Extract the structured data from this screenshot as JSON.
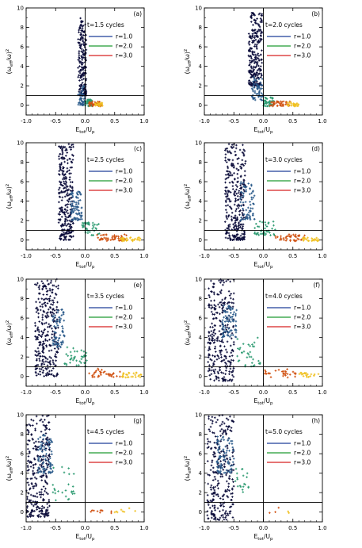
{
  "chart_data": [
    {
      "type": "scatter",
      "panel_label": "(a)",
      "time_label": "t=1.5 cycles",
      "xlabel": "E_tot/U_p",
      "ylabel": "(ω_eff/ω)²",
      "xlim": [
        -1,
        1
      ],
      "ylim": [
        -1,
        10
      ],
      "xticks": [
        "-1.0",
        "-0.5",
        "0.0",
        "0.5",
        "1.0"
      ],
      "yticks": [
        "0",
        "2",
        "4",
        "6",
        "8",
        "10"
      ],
      "hline": 1,
      "vline": 0,
      "legend": [
        {
          "name": "r=1.0",
          "color": "#1f3d99"
        },
        {
          "name": "r=2.0",
          "color": "#1e9a30"
        },
        {
          "name": "r=3.0",
          "color": "#d62020"
        }
      ],
      "clusters": [
        {
          "x_range": [
            -0.12,
            0.02
          ],
          "y_range": [
            1,
            9
          ],
          "count": 200,
          "color": "#0b0c3a"
        },
        {
          "x_range": [
            -0.12,
            0.0
          ],
          "y_range": [
            0,
            2
          ],
          "count": 50,
          "color": "#2a5a8a"
        },
        {
          "x_range": [
            0.0,
            0.12
          ],
          "y_range": [
            -0.1,
            0.6
          ],
          "count": 40,
          "color": "#2b9a70"
        },
        {
          "x_range": [
            0.05,
            0.3
          ],
          "y_range": [
            -0.1,
            0.4
          ],
          "count": 40,
          "color": "#d05010"
        },
        {
          "x_range": [
            0.15,
            0.3
          ],
          "y_range": [
            -0.1,
            0.3
          ],
          "count": 20,
          "color": "#f0c020"
        }
      ]
    },
    {
      "type": "scatter",
      "panel_label": "(b)",
      "time_label": "t=2.0 cycles",
      "xlabel": "E_tot/U_p",
      "ylabel": "(ω_eff/ω)²",
      "xlim": [
        -1,
        1
      ],
      "ylim": [
        -1,
        10
      ],
      "xticks": [
        "-1.0",
        "-0.5",
        "0.0",
        "0.5",
        "1.0"
      ],
      "yticks": [
        "0",
        "2",
        "4",
        "6",
        "8",
        "10"
      ],
      "hline": 1,
      "vline": 0,
      "legend": [
        {
          "name": "r=1.0",
          "color": "#1f3d99"
        },
        {
          "name": "r=2.0",
          "color": "#1e9a30"
        },
        {
          "name": "r=3.0",
          "color": "#d62020"
        }
      ],
      "clusters": [
        {
          "x_range": [
            -0.25,
            -0.02
          ],
          "y_range": [
            2,
            9.5
          ],
          "count": 260,
          "color": "#0b0c3a"
        },
        {
          "x_range": [
            -0.2,
            0.0
          ],
          "y_range": [
            0.5,
            3
          ],
          "count": 60,
          "color": "#2a5a8a"
        },
        {
          "x_range": [
            0.0,
            0.2
          ],
          "y_range": [
            -0.1,
            0.8
          ],
          "count": 40,
          "color": "#2b9a70"
        },
        {
          "x_range": [
            0.1,
            0.45
          ],
          "y_range": [
            -0.1,
            0.4
          ],
          "count": 40,
          "color": "#d05010"
        },
        {
          "x_range": [
            0.4,
            0.6
          ],
          "y_range": [
            -0.1,
            0.3
          ],
          "count": 25,
          "color": "#f0c020"
        }
      ]
    },
    {
      "type": "scatter",
      "panel_label": "(c)",
      "time_label": "t=2.5 cycles",
      "xlabel": "E_tot/U_p",
      "ylabel": "(ω_eff/ω)²",
      "xlim": [
        -1,
        1
      ],
      "ylim": [
        -1,
        10
      ],
      "xticks": [
        "-1.0",
        "-0.5",
        "0.0",
        "0.5",
        "1.0"
      ],
      "yticks": [
        "0",
        "2",
        "4",
        "6",
        "8",
        "10"
      ],
      "hline": 1,
      "vline": 0,
      "legend": [
        {
          "name": "r=1.0",
          "color": "#1f3d99"
        },
        {
          "name": "r=2.0",
          "color": "#1e9a30"
        },
        {
          "name": "r=3.0",
          "color": "#d62020"
        }
      ],
      "clusters": [
        {
          "x_range": [
            -0.45,
            -0.2
          ],
          "y_range": [
            0,
            10
          ],
          "count": 280,
          "color": "#0b0c3a"
        },
        {
          "x_range": [
            -0.25,
            -0.05
          ],
          "y_range": [
            2,
            5
          ],
          "count": 80,
          "color": "#2a5a8a"
        },
        {
          "x_range": [
            -0.05,
            0.25
          ],
          "y_range": [
            0.5,
            2
          ],
          "count": 40,
          "color": "#2b9a70"
        },
        {
          "x_range": [
            0.2,
            0.7
          ],
          "y_range": [
            -0.1,
            0.6
          ],
          "count": 50,
          "color": "#d05010"
        },
        {
          "x_range": [
            0.6,
            0.95
          ],
          "y_range": [
            -0.1,
            0.3
          ],
          "count": 30,
          "color": "#f0c020"
        }
      ]
    },
    {
      "type": "scatter",
      "panel_label": "(d)",
      "time_label": "t=3.0 cycles",
      "xlabel": "E_tot/U_p",
      "ylabel": "(ω_eff/ω)²",
      "xlim": [
        -1,
        1
      ],
      "ylim": [
        -1,
        10
      ],
      "xticks": [
        "-1.0",
        "-0.5",
        "0.0",
        "0.5",
        "1.0"
      ],
      "yticks": [
        "0",
        "2",
        "4",
        "6",
        "8",
        "10"
      ],
      "hline": 1,
      "vline": 0,
      "legend": [
        {
          "name": "r=1.0",
          "color": "#1f3d99"
        },
        {
          "name": "r=2.0",
          "color": "#1e9a30"
        },
        {
          "name": "r=3.0",
          "color": "#d62020"
        }
      ],
      "clusters": [
        {
          "x_range": [
            -0.65,
            -0.3
          ],
          "y_range": [
            0,
            10
          ],
          "count": 300,
          "color": "#0b0c3a"
        },
        {
          "x_range": [
            -0.4,
            -0.15
          ],
          "y_range": [
            2,
            6
          ],
          "count": 70,
          "color": "#2a5a8a"
        },
        {
          "x_range": [
            -0.15,
            0.2
          ],
          "y_range": [
            0.5,
            2
          ],
          "count": 40,
          "color": "#2b9a70"
        },
        {
          "x_range": [
            0.2,
            0.7
          ],
          "y_range": [
            -0.1,
            0.6
          ],
          "count": 40,
          "color": "#d05010"
        },
        {
          "x_range": [
            0.65,
            0.95
          ],
          "y_range": [
            -0.1,
            0.3
          ],
          "count": 25,
          "color": "#f0c020"
        }
      ]
    },
    {
      "type": "scatter",
      "panel_label": "(e)",
      "time_label": "t=3.5 cycles",
      "xlabel": "E_tot/U_p",
      "ylabel": "(ω_eff/ω)²",
      "xlim": [
        -1,
        1
      ],
      "ylim": [
        -1,
        10
      ],
      "xticks": [
        "-1.0",
        "-0.5",
        "0.0",
        "0.5",
        "1.0"
      ],
      "yticks": [
        "0",
        "2",
        "4",
        "6",
        "8",
        "10"
      ],
      "hline": 1,
      "vline": 0,
      "legend": [
        {
          "name": "r=1.0",
          "color": "#1f3d99"
        },
        {
          "name": "r=2.0",
          "color": "#1e9a30"
        },
        {
          "name": "r=3.0",
          "color": "#d62020"
        }
      ],
      "clusters": [
        {
          "x_range": [
            -0.85,
            -0.45
          ],
          "y_range": [
            0,
            10
          ],
          "count": 300,
          "color": "#0b0c3a"
        },
        {
          "x_range": [
            -0.55,
            -0.35
          ],
          "y_range": [
            3,
            7
          ],
          "count": 70,
          "color": "#2a5a8a"
        },
        {
          "x_range": [
            -0.35,
            0.05
          ],
          "y_range": [
            1,
            3
          ],
          "count": 40,
          "color": "#2b9a70"
        },
        {
          "x_range": [
            0.05,
            0.6
          ],
          "y_range": [
            -0.1,
            0.8
          ],
          "count": 35,
          "color": "#d05010"
        },
        {
          "x_range": [
            0.6,
            0.95
          ],
          "y_range": [
            -0.1,
            0.4
          ],
          "count": 25,
          "color": "#f0c020"
        }
      ]
    },
    {
      "type": "scatter",
      "panel_label": "(f)",
      "time_label": "t=4.0 cycles",
      "xlabel": "E_tot/U_p",
      "ylabel": "(ω_eff/ω)²",
      "xlim": [
        -1,
        1
      ],
      "ylim": [
        -1,
        10
      ],
      "xticks": [
        "-1.0",
        "-0.5",
        "0.0",
        "0.5",
        "1.0"
      ],
      "yticks": [
        "0",
        "2",
        "4",
        "6",
        "8",
        "10"
      ],
      "hline": 1,
      "vline": 0,
      "legend": [
        {
          "name": "r=1.0",
          "color": "#1f3d99"
        },
        {
          "name": "r=2.0",
          "color": "#1e9a30"
        },
        {
          "name": "r=3.0",
          "color": "#d62020"
        }
      ],
      "clusters": [
        {
          "x_range": [
            -0.95,
            -0.5
          ],
          "y_range": [
            -0.5,
            10
          ],
          "count": 280,
          "color": "#0b0c3a"
        },
        {
          "x_range": [
            -0.7,
            -0.45
          ],
          "y_range": [
            4,
            7.5
          ],
          "count": 80,
          "color": "#2a5a8a"
        },
        {
          "x_range": [
            -0.45,
            -0.05
          ],
          "y_range": [
            1,
            4
          ],
          "count": 35,
          "color": "#2b9a70"
        },
        {
          "x_range": [
            0.0,
            0.6
          ],
          "y_range": [
            -0.1,
            0.8
          ],
          "count": 30,
          "color": "#d05010"
        },
        {
          "x_range": [
            0.6,
            0.95
          ],
          "y_range": [
            -0.1,
            0.4
          ],
          "count": 20,
          "color": "#f0c020"
        }
      ]
    },
    {
      "type": "scatter",
      "panel_label": "(g)",
      "time_label": "t=4.5 cycles",
      "xlabel": "E_tot/U_p",
      "ylabel": "(ω_eff/ω)²",
      "xlim": [
        -1,
        1
      ],
      "ylim": [
        -1,
        10
      ],
      "xticks": [
        "-1.0",
        "-0.5",
        "0.0",
        "0.5",
        "1.0"
      ],
      "yticks": [
        "0",
        "2",
        "4",
        "6",
        "8",
        "10"
      ],
      "hline": 1,
      "vline": 0,
      "legend": [
        {
          "name": "r=1.0",
          "color": "#1f3d99"
        },
        {
          "name": "r=2.0",
          "color": "#1e9a30"
        },
        {
          "name": "r=3.0",
          "color": "#d62020"
        }
      ],
      "clusters": [
        {
          "x_range": [
            -1.0,
            -0.6
          ],
          "y_range": [
            -0.5,
            10
          ],
          "count": 280,
          "color": "#0b0c3a"
        },
        {
          "x_range": [
            -0.8,
            -0.55
          ],
          "y_range": [
            4,
            8
          ],
          "count": 80,
          "color": "#2a5a8a"
        },
        {
          "x_range": [
            -0.55,
            -0.15
          ],
          "y_range": [
            1,
            5
          ],
          "count": 25,
          "color": "#2b9a70"
        },
        {
          "x_range": [
            0.0,
            0.5
          ],
          "y_range": [
            -0.1,
            0.5
          ],
          "count": 10,
          "color": "#d05010"
        },
        {
          "x_range": [
            0.5,
            0.95
          ],
          "y_range": [
            -0.1,
            0.4
          ],
          "count": 8,
          "color": "#f0c020"
        }
      ]
    },
    {
      "type": "scatter",
      "panel_label": "(h)",
      "time_label": "t=5.0 cycles",
      "xlabel": "E_tot/U_p",
      "ylabel": "(ω_eff/ω)²",
      "xlim": [
        -1,
        1
      ],
      "ylim": [
        -1,
        10
      ],
      "xticks": [
        "-1.0",
        "-0.5",
        "0.0",
        "0.5",
        "1.0"
      ],
      "yticks": [
        "0",
        "2",
        "4",
        "6",
        "8",
        "10"
      ],
      "hline": 1,
      "vline": 0,
      "legend": [
        {
          "name": "r=1.0",
          "color": "#1f3d99"
        },
        {
          "name": "r=2.0",
          "color": "#1e9a30"
        },
        {
          "name": "r=3.0",
          "color": "#d62020"
        }
      ],
      "clusters": [
        {
          "x_range": [
            -0.95,
            -0.5
          ],
          "y_range": [
            -0.8,
            10
          ],
          "count": 260,
          "color": "#0b0c3a"
        },
        {
          "x_range": [
            -0.8,
            -0.5
          ],
          "y_range": [
            4,
            8
          ],
          "count": 80,
          "color": "#2a5a8a"
        },
        {
          "x_range": [
            -0.5,
            -0.25
          ],
          "y_range": [
            2,
            5
          ],
          "count": 20,
          "color": "#2b9a70"
        },
        {
          "x_range": [
            0.1,
            0.3
          ],
          "y_range": [
            -0.1,
            0.5
          ],
          "count": 3,
          "color": "#d05010"
        },
        {
          "x_range": [
            0.35,
            0.5
          ],
          "y_range": [
            -0.1,
            0.3
          ],
          "count": 2,
          "color": "#f0c020"
        }
      ]
    }
  ]
}
